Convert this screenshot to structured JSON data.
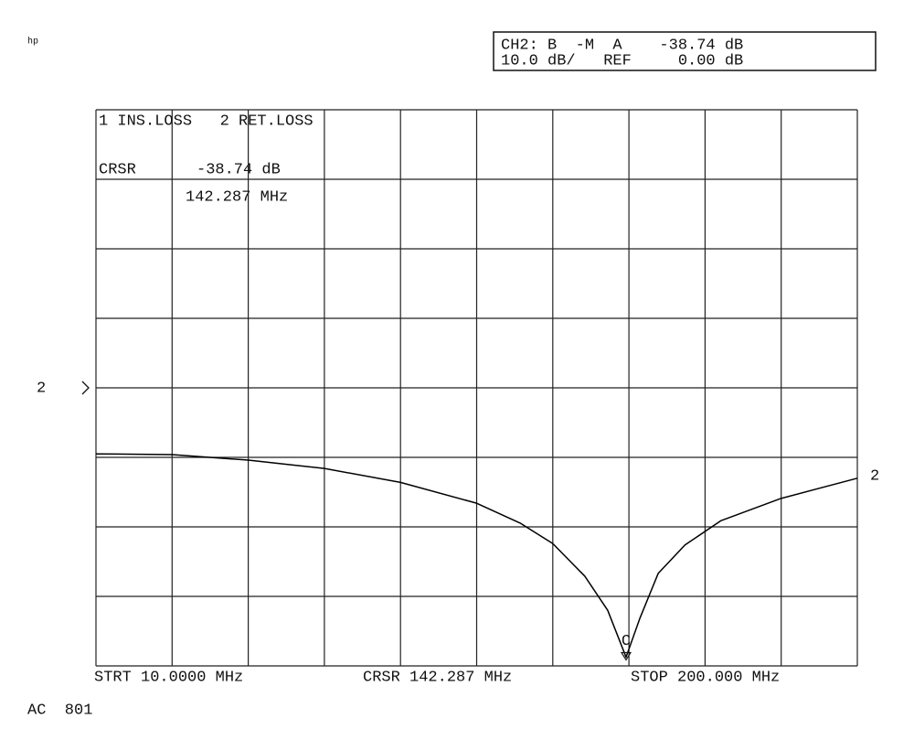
{
  "chart_data": {
    "type": "line",
    "brand": "hp",
    "header_box": [
      "CH2: B  -M  A    -38.74 dB",
      "10.0 dB/   REF     0.00 dB"
    ],
    "trace_labels": "1 INS.LOSS   2 RET.LOSS",
    "cursor_readout": {
      "label": "CRSR",
      "value": "-38.74 dB",
      "frequency": "142.287 MHz"
    },
    "footer": {
      "start": "STRT 10.0000 MHz",
      "cursor": "CRSR 142.287 MHz",
      "stop": "STOP 200.000 MHz"
    },
    "bottom_note": "AC  801",
    "xlim": [
      10,
      200
    ],
    "ylim": [
      -40,
      40
    ],
    "xticks": [
      10,
      29,
      48,
      67,
      86,
      105,
      124,
      143,
      162,
      181,
      200
    ],
    "yticks": [
      -40,
      -30,
      -20,
      -10,
      0,
      10,
      20,
      30,
      40
    ],
    "grid": true,
    "ref_level": 0,
    "cursor": {
      "x": 142.287,
      "y": -38.74,
      "label": "C"
    },
    "x": [
      10,
      29,
      48,
      67,
      86,
      105,
      116,
      124,
      132,
      137.7,
      142.287,
      145.7,
      150.3,
      157,
      166,
      181,
      200
    ],
    "series": [
      {
        "name": "2",
        "color": "#000000",
        "values": [
          -9.5,
          -9.6,
          -10.4,
          -11.6,
          -13.6,
          -16.6,
          -19.5,
          -22.4,
          -27.1,
          -32,
          -38.74,
          -33.2,
          -26.7,
          -22.6,
          -19.1,
          -15.9,
          -13.0
        ]
      }
    ]
  }
}
